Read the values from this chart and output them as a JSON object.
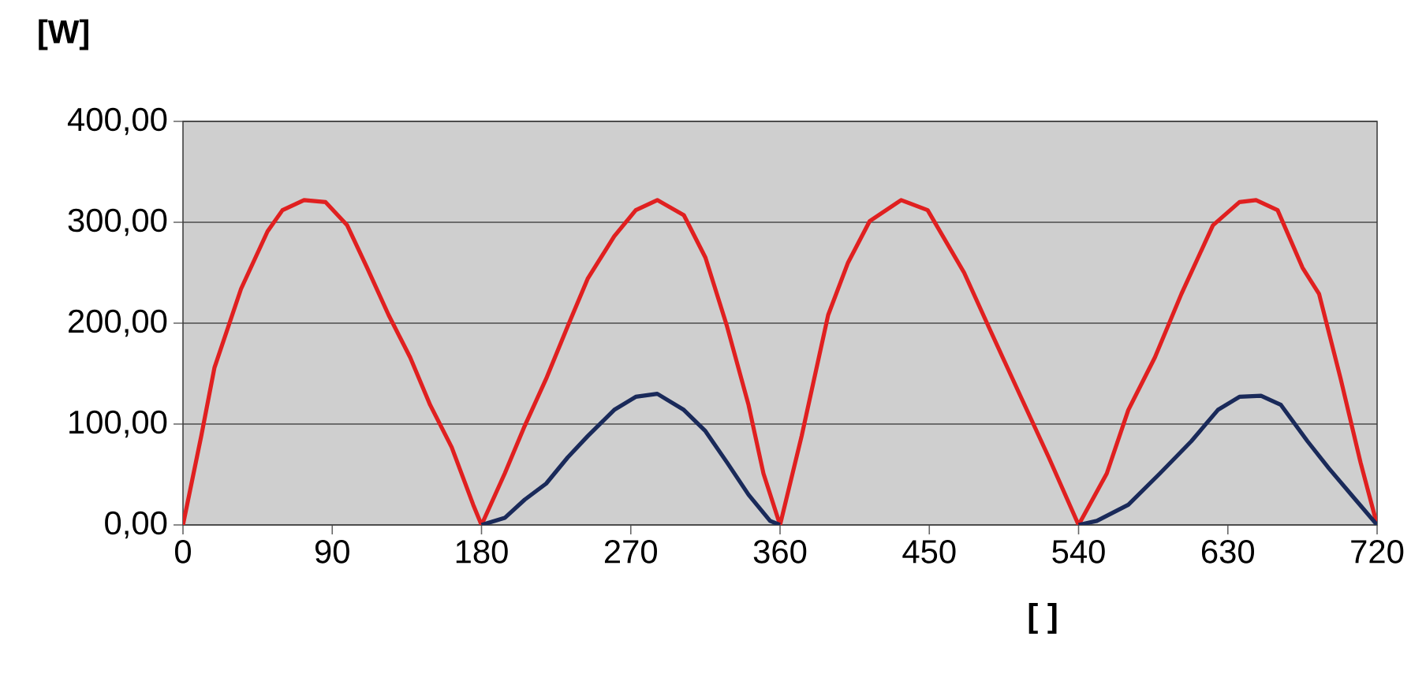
{
  "chart_data": {
    "type": "line",
    "xlabel": "[ ]",
    "ylabel": "[W]",
    "xlim": [
      0,
      720
    ],
    "xticks": [
      0,
      90,
      180,
      270,
      360,
      450,
      540,
      630,
      720
    ],
    "ylim": [
      0,
      400
    ],
    "yticks": [
      {
        "value": 0,
        "label": "0,00"
      },
      {
        "value": 100,
        "label": "100,00"
      },
      {
        "value": 200,
        "label": "200,00"
      },
      {
        "value": 300,
        "label": "300,00"
      },
      {
        "value": 400,
        "label": "400,00"
      }
    ],
    "grid": "y",
    "legend": false,
    "marker": "none",
    "line_style": "solid",
    "series": [
      {
        "color": "#e02020",
        "x": [
          0,
          11,
          19,
          35,
          51,
          60,
          73,
          86,
          99,
          111,
          124,
          137,
          149,
          162,
          175,
          180,
          194,
          206,
          219,
          232,
          244,
          260,
          273,
          286,
          302,
          315,
          328,
          341,
          350,
          360,
          373,
          389,
          401,
          414,
          433,
          449,
          471,
          487,
          506,
          522,
          540,
          557,
          570,
          586,
          602,
          621,
          637,
          647,
          660,
          675,
          685,
          698,
          710,
          720
        ],
        "values": [
          0,
          88,
          156,
          234,
          291,
          312,
          322,
          320,
          297,
          255,
          208,
          166,
          119,
          77,
          20,
          0,
          51,
          98,
          145,
          197,
          244,
          286,
          312,
          322,
          307,
          265,
          197,
          119,
          51,
          0,
          88,
          208,
          260,
          301,
          322,
          312,
          250,
          192,
          124,
          67,
          0,
          51,
          114,
          166,
          229,
          297,
          320,
          322,
          312,
          255,
          229,
          145,
          62,
          0
        ]
      },
      {
        "color": "#1a2a5a",
        "x": [
          180,
          194,
          206,
          219,
          232,
          244,
          260,
          273,
          286,
          302,
          315,
          328,
          341,
          354,
          360,
          450,
          540,
          551,
          570,
          589,
          608,
          624,
          637,
          650,
          662,
          678,
          691,
          707,
          720
        ],
        "values": [
          0,
          7,
          25,
          41,
          67,
          88,
          114,
          127,
          130,
          114,
          93,
          62,
          30,
          4,
          0,
          null,
          0,
          4,
          20,
          51,
          83,
          114,
          127,
          128,
          119,
          83,
          56,
          25,
          0
        ]
      }
    ]
  }
}
